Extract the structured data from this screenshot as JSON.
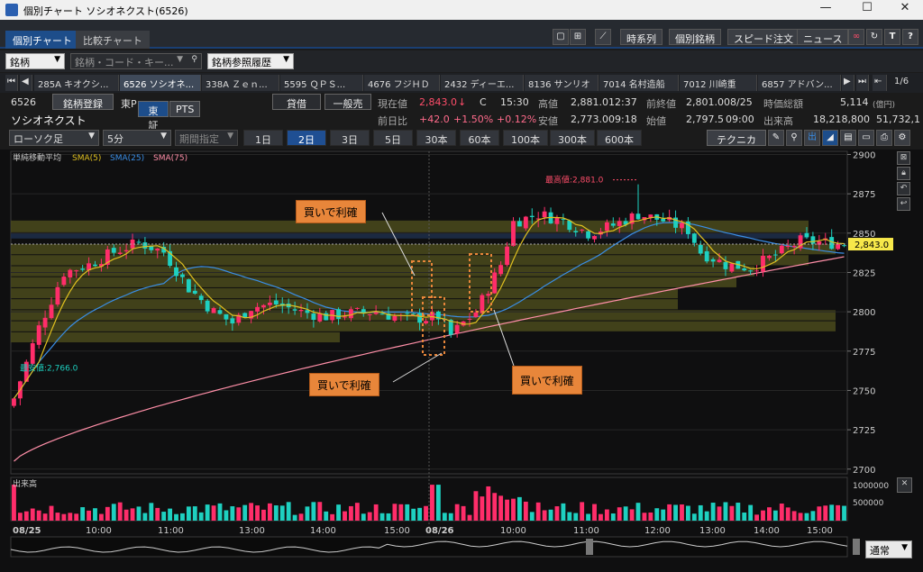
{
  "window": {
    "title": "個別チャート ソシオネクスト(6526)",
    "min": "—",
    "max": "☐",
    "close": "✕"
  },
  "tabs": [
    {
      "label": "個別チャート",
      "active": true
    },
    {
      "label": "比較チャート",
      "active": false
    }
  ],
  "top_buttons": {
    "timeseries": "時系列",
    "stock": "個別銘柄",
    "speed_order": "スピード注文",
    "news": "ニュース"
  },
  "search": {
    "type_select": "銘柄",
    "placeholder": "銘柄・コード・キー...",
    "history_select": "銘柄参照履歴"
  },
  "stock_tabs": [
    "285A キオクシ...",
    "6526 ソシオネ...",
    "338A Ｚｅｎ...",
    "5595 ＱＰＳ...",
    "4676 フジＨＤ",
    "2432 ディーエ...",
    "8136 サンリオ",
    "7014 名村造船",
    "7012 川崎重",
    "6857 アドバン..."
  ],
  "stock_tab_page": "1/6",
  "quote": {
    "code": "6526",
    "register": "銘柄登録",
    "market": "東P",
    "exchange_tse": "東証",
    "exchange_pts": "PTS",
    "name": "ソシオネクスト",
    "lending": "貸借",
    "general_margin": "一般売",
    "current_label": "現在値",
    "current": "2,843.0",
    "current_arrow": "↓",
    "flag": "C",
    "time": "15:30",
    "high_label": "高値",
    "high": "2,881.0",
    "high_time": "12:37",
    "prev_close_label": "前終値",
    "prev_close": "2,801.0",
    "prev_close_date": "08/25",
    "mcap_label": "時価総額",
    "mcap": "5,114",
    "mcap_unit": "(億円)",
    "change_label": "前日比",
    "change": "+42.0",
    "change_pct": "+1.50%",
    "change_pct2": "+0.12%",
    "low_label": "安値",
    "low": "2,773.0",
    "low_time": "09:18",
    "open_label": "始値",
    "open": "2,797.5",
    "open_time": "09:00",
    "volume_label": "出来高",
    "volume": "18,218,800",
    "volume2": "51,732,1"
  },
  "chart_controls": {
    "chart_type": "ローソク足",
    "interval": "5分",
    "period": "期間指定",
    "periods": [
      "1日",
      "2日",
      "3日",
      "5日",
      "30本",
      "60本",
      "100本",
      "300本",
      "600本"
    ],
    "active_period": "2日",
    "technical": "テクニカル"
  },
  "chart_data": {
    "type": "candlestick",
    "indicator_title": "単純移動平均",
    "legend": [
      {
        "name": "SMA(5)",
        "color": "#e0c020"
      },
      {
        "name": "SMA(25)",
        "color": "#3a8ee6"
      },
      {
        "name": "SMA(75)",
        "color": "#ff8fa8"
      }
    ],
    "y_ticks": [
      2700,
      2725,
      2750,
      2775,
      2800,
      2825,
      2850,
      2875,
      2900
    ],
    "ylim": [
      2697,
      2902
    ],
    "x_labels": [
      "08/25",
      "10:00",
      "11:00",
      "13:00",
      "14:00",
      "15:00",
      "08/26",
      "10:00",
      "11:00",
      "12:00",
      "13:00",
      "14:00",
      "15:00"
    ],
    "current_price_label": "2,843.0",
    "max_label": "最高値:2,881.0",
    "min_label": "最安値:2,766.0",
    "volume_panel_title": "出来高",
    "volume_ticks": [
      "1000000",
      "500000"
    ],
    "bar_count": 134,
    "close_anchors": [
      [
        0,
        2745
      ],
      [
        4,
        2790
      ],
      [
        8,
        2825
      ],
      [
        12,
        2830
      ],
      [
        16,
        2838
      ],
      [
        20,
        2844
      ],
      [
        24,
        2838
      ],
      [
        28,
        2815
      ],
      [
        32,
        2800
      ],
      [
        35,
        2793
      ],
      [
        38,
        2803
      ],
      [
        42,
        2805
      ],
      [
        46,
        2800
      ],
      [
        50,
        2797
      ],
      [
        54,
        2799
      ],
      [
        58,
        2800
      ],
      [
        62,
        2796
      ],
      [
        66,
        2796
      ],
      [
        68,
        2797
      ],
      [
        70,
        2785
      ],
      [
        72,
        2793
      ],
      [
        74,
        2800
      ],
      [
        76,
        2815
      ],
      [
        78,
        2830
      ],
      [
        80,
        2857
      ],
      [
        84,
        2862
      ],
      [
        88,
        2858
      ],
      [
        92,
        2850
      ],
      [
        96,
        2855
      ],
      [
        100,
        2862
      ],
      [
        104,
        2858
      ],
      [
        108,
        2852
      ],
      [
        110,
        2838
      ],
      [
        114,
        2830
      ],
      [
        118,
        2828
      ],
      [
        122,
        2836
      ],
      [
        126,
        2845
      ],
      [
        130,
        2844
      ],
      [
        133,
        2843
      ]
    ],
    "annotations": [
      "買いで利確",
      "買いで利確",
      "買いで利確"
    ],
    "volume_selector": "通常"
  },
  "colors": {
    "up": "#ff2d6a",
    "down": "#1ed0c0",
    "sma5": "#e0c020",
    "sma25": "#3a8ee6",
    "sma75": "#ff8fa8",
    "callout": "#e8863a",
    "volume_band": "#4a4a1c",
    "current_price_bg": "#f7e84a"
  }
}
